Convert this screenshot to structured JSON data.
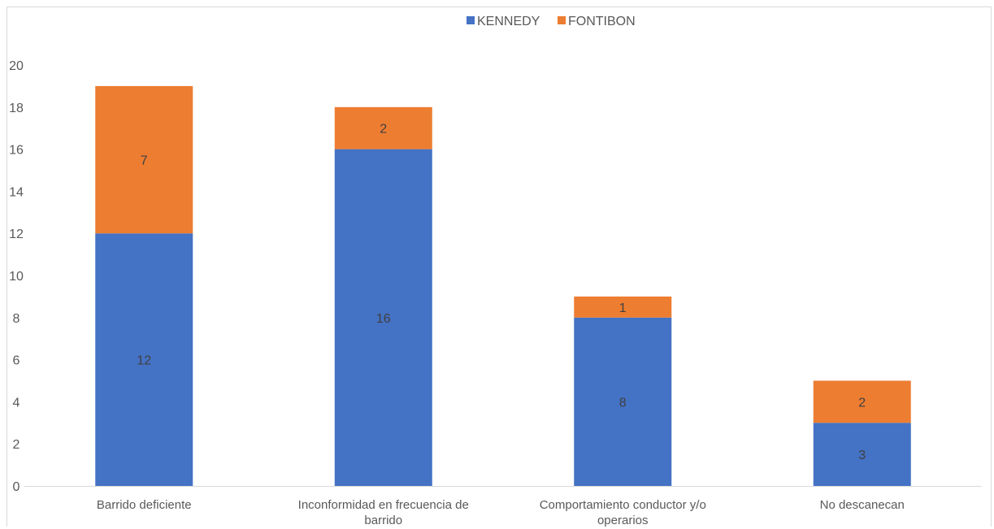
{
  "chart_data": {
    "type": "bar",
    "stacked": true,
    "categories": [
      [
        "Barrido deficiente"
      ],
      [
        "Inconformidad en frecuencia de",
        "barrido"
      ],
      [
        "Comportamiento conductor y/o",
        "operarios"
      ],
      [
        "No descanecan"
      ]
    ],
    "series": [
      {
        "name": "KENNEDY",
        "color": "#4472c4",
        "values": [
          12,
          16,
          8,
          3
        ]
      },
      {
        "name": "FONTIBON",
        "color": "#ed7d31",
        "values": [
          7,
          2,
          1,
          2
        ]
      }
    ],
    "ylim": [
      0,
      20
    ],
    "yticks": [
      0,
      2,
      4,
      6,
      8,
      10,
      12,
      14,
      16,
      18,
      20
    ],
    "legend_position": "top-center",
    "grid": false
  }
}
